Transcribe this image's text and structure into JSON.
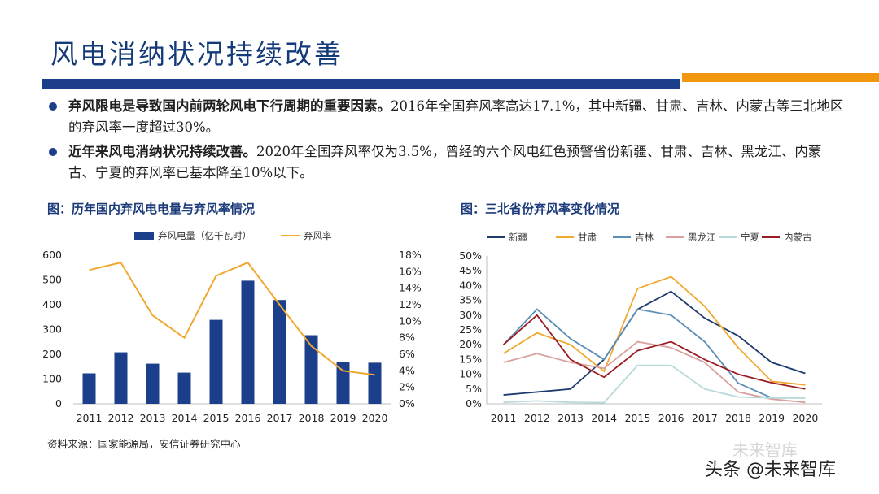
{
  "page": {
    "title": "风电消纳状况持续改善",
    "bullets": [
      {
        "bold": "弃风限电是导致国内前两轮风电下行周期的重要因素。",
        "rest": "2016年全国弃风率高达17.1%，其中新疆、甘肃、吉林、内蒙古等三北地区的弃风率一度超过30%。"
      },
      {
        "bold": "近年来风电消纳状况持续改善。",
        "rest": "2020年全国弃风率仅为3.5%，曾经的六个风电红色预警省份新疆、甘肃、吉林、黑龙江、内蒙古、宁夏的弃风率已基本降至10%以下。"
      }
    ],
    "source": "资料来源：国家能源局，安信证券研究中心",
    "watermark": "头条 @未来智库",
    "watermark_faint": "未来智库"
  },
  "colors": {
    "brand_blue": "#1b3f8a",
    "brand_orange": "#f0960f"
  },
  "chart_data": [
    {
      "type": "bar",
      "title": "图：历年国内弃风电电量与弃风率情况",
      "categories": [
        "2011",
        "2012",
        "2013",
        "2014",
        "2015",
        "2016",
        "2017",
        "2018",
        "2019",
        "2020"
      ],
      "series": [
        {
          "name": "弃风电量（亿千瓦时）",
          "type": "bar",
          "axis": "left",
          "color": "#1b3f8a",
          "values": [
            123,
            208,
            162,
            126,
            339,
            497,
            419,
            277,
            169,
            166
          ]
        },
        {
          "name": "弃风率",
          "type": "line",
          "axis": "right",
          "color": "#f0a830",
          "values": [
            16.2,
            17.1,
            10.7,
            8.0,
            15.5,
            17.1,
            12.0,
            7.0,
            4.0,
            3.5
          ]
        }
      ],
      "ylim": [
        0,
        600
      ],
      "yticks": [
        "0",
        "100",
        "200",
        "300",
        "400",
        "500",
        "600"
      ],
      "y2lim": [
        0,
        18
      ],
      "y2ticks": [
        "0%",
        "2%",
        "4%",
        "6%",
        "8%",
        "10%",
        "12%",
        "14%",
        "16%",
        "18%"
      ],
      "legend": "top"
    },
    {
      "type": "line",
      "title": "图：三北省份弃风率变化情况",
      "categories": [
        "2011",
        "2012",
        "2013",
        "2014",
        "2015",
        "2016",
        "2017",
        "2018",
        "2019",
        "2020"
      ],
      "series": [
        {
          "name": "新疆",
          "color": "#1f3a6e",
          "values": [
            3.0,
            4.0,
            5.0,
            15.0,
            32.0,
            38.0,
            29.0,
            23.0,
            14.0,
            10.3
          ]
        },
        {
          "name": "甘肃",
          "color": "#f0a830",
          "values": [
            17.0,
            24.0,
            20.0,
            11.0,
            39.0,
            43.0,
            33.0,
            19.0,
            7.6,
            6.4
          ]
        },
        {
          "name": "吉林",
          "color": "#5b8db5",
          "values": [
            20.0,
            32.0,
            22.0,
            15.0,
            32.0,
            30.0,
            21.0,
            7.0,
            2.0,
            2.0
          ]
        },
        {
          "name": "黑龙江",
          "color": "#d9a0a0",
          "values": [
            14.0,
            17.0,
            14.0,
            12.0,
            21.0,
            19.0,
            14.0,
            4.0,
            1.6,
            0.5
          ]
        },
        {
          "name": "宁夏",
          "color": "#b8dada",
          "values": [
            0.5,
            1.0,
            0.5,
            0.4,
            13.0,
            13.0,
            5.0,
            2.3,
            2.0,
            2.0
          ]
        },
        {
          "name": "内蒙古",
          "color": "#9b1c24",
          "values": [
            20.0,
            30.0,
            15.0,
            9.0,
            18.0,
            21.0,
            15.0,
            10.0,
            7.1,
            5.0
          ]
        }
      ],
      "ylim": [
        0,
        50
      ],
      "yticks": [
        "0%",
        "5%",
        "10%",
        "15%",
        "20%",
        "25%",
        "30%",
        "35%",
        "40%",
        "45%",
        "50%"
      ],
      "legend": "top"
    }
  ]
}
